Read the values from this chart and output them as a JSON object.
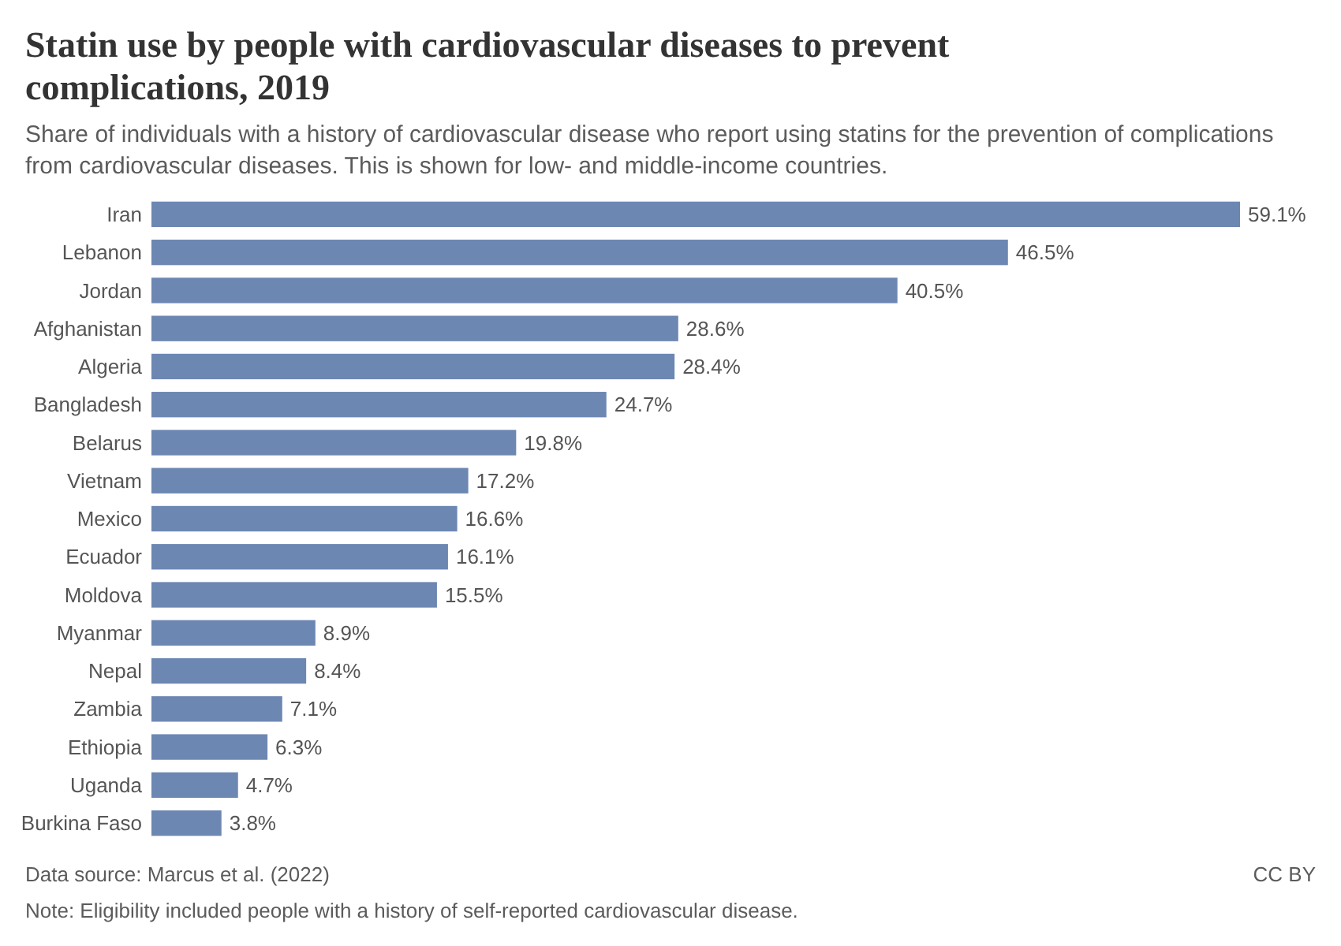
{
  "chart_data": {
    "type": "bar",
    "orientation": "horizontal",
    "title": "Statin use by people with cardiovascular diseases to prevent complications, 2019",
    "subtitle": "Share of individuals with a history of cardiovascular disease who report using statins for the prevention of complications from cardiovascular diseases. This is shown for low- and middle-income countries.",
    "categories": [
      "Iran",
      "Lebanon",
      "Jordan",
      "Afghanistan",
      "Algeria",
      "Bangladesh",
      "Belarus",
      "Vietnam",
      "Mexico",
      "Ecuador",
      "Moldova",
      "Myanmar",
      "Nepal",
      "Zambia",
      "Ethiopia",
      "Uganda",
      "Burkina Faso"
    ],
    "values": [
      59.1,
      46.5,
      40.5,
      28.6,
      28.4,
      24.7,
      19.8,
      17.2,
      16.6,
      16.1,
      15.5,
      8.9,
      8.4,
      7.1,
      6.3,
      4.7,
      3.8
    ],
    "value_labels": [
      "59.1%",
      "46.5%",
      "40.5%",
      "28.6%",
      "28.4%",
      "24.7%",
      "19.8%",
      "17.2%",
      "16.6%",
      "16.1%",
      "15.5%",
      "8.9%",
      "8.4%",
      "7.1%",
      "6.3%",
      "4.7%",
      "3.8%"
    ],
    "color": "#6d87b3",
    "annotations": [
      "Data source: Marcus et al. (2022)",
      "CC BY",
      "Note: Eligibility included people with a history of self-reported cardiovascular disease."
    ]
  }
}
